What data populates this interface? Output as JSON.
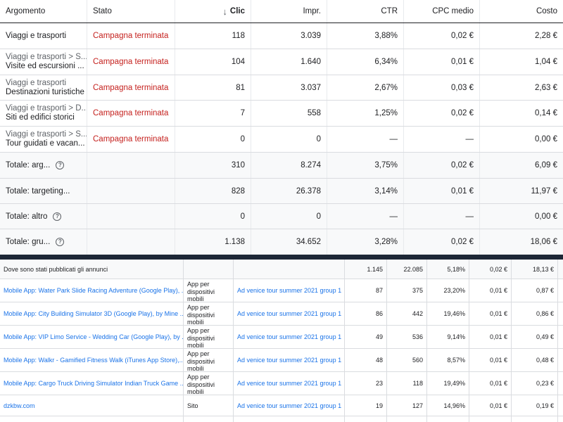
{
  "top_table": {
    "headers": {
      "argomento": "Argomento",
      "stato": "Stato",
      "clic": "Clic",
      "impr": "Impr.",
      "ctr": "CTR",
      "cpc": "CPC medio",
      "costo": "Costo"
    },
    "sort_icon": "arrow-down-icon",
    "rows": [
      {
        "line1": "Viaggi e trasporti",
        "line2": "",
        "stato": "Campagna terminata",
        "clic": "118",
        "impr": "3.039",
        "ctr": "3,88%",
        "cpc": "0,02 €",
        "costo": "2,28 €"
      },
      {
        "line1": "Viaggi e trasporti > S...",
        "line2": "Visite ed escursioni ...",
        "stato": "Campagna terminata",
        "clic": "104",
        "impr": "1.640",
        "ctr": "6,34%",
        "cpc": "0,01 €",
        "costo": "1,04 €"
      },
      {
        "line1": "Viaggi e trasporti",
        "line2": "Destinazioni turistiche",
        "stato": "Campagna terminata",
        "clic": "81",
        "impr": "3.037",
        "ctr": "2,67%",
        "cpc": "0,03 €",
        "costo": "2,63 €"
      },
      {
        "line1": "Viaggi e trasporti > D...",
        "line2": "Siti ed edifici storici",
        "stato": "Campagna terminata",
        "clic": "7",
        "impr": "558",
        "ctr": "1,25%",
        "cpc": "0,02 €",
        "costo": "0,14 €"
      },
      {
        "line1": "Viaggi e trasporti > S...",
        "line2": "Tour guidati e vacan...",
        "stato": "Campagna terminata",
        "clic": "0",
        "impr": "0",
        "ctr": "—",
        "cpc": "—",
        "costo": "0,00 €"
      }
    ],
    "totals": [
      {
        "label": "Totale: arg...",
        "help": true,
        "clic": "310",
        "impr": "8.274",
        "ctr": "3,75%",
        "cpc": "0,02 €",
        "costo": "6,09 €"
      },
      {
        "label": "Totale: targeting...",
        "help": false,
        "clic": "828",
        "impr": "26.378",
        "ctr": "3,14%",
        "cpc": "0,01 €",
        "costo": "11,97 €"
      },
      {
        "label": "Totale: altro",
        "help": true,
        "clic": "0",
        "impr": "0",
        "ctr": "—",
        "cpc": "—",
        "costo": "0,00 €"
      },
      {
        "label": "Totale: gru...",
        "help": true,
        "clic": "1.138",
        "impr": "34.652",
        "ctr": "3,28%",
        "cpc": "0,02 €",
        "costo": "18,06 €"
      }
    ],
    "help_glyph": "?"
  },
  "bottom_table": {
    "summary": {
      "label": "Dove sono stati pubblicati gli annunci",
      "clic": "1.145",
      "impr": "22.085",
      "ctr": "5,18%",
      "cpc": "0,02 €",
      "costo": "18,13 €"
    },
    "rows": [
      {
        "placement": "Mobile App: Water Park Slide Racing Adventure (Google Play), ...",
        "tipo": "App per dispositivi mobili",
        "gruppo": "Ad venice tour summer 2021 group 1",
        "clic": "87",
        "impr": "375",
        "ctr": "23,20%",
        "cpc": "0,01 €",
        "costo": "0,87 €"
      },
      {
        "placement": "Mobile App: City Building Simulator 3D (Google Play), by Mine ...",
        "tipo": "App per dispositivi mobili",
        "gruppo": "Ad venice tour summer 2021 group 1",
        "clic": "86",
        "impr": "442",
        "ctr": "19,46%",
        "cpc": "0,01 €",
        "costo": "0,86 €"
      },
      {
        "placement": "Mobile App: VIP Limo Service - Wedding Car (Google Play), by ...",
        "tipo": "App per dispositivi mobili",
        "gruppo": "Ad venice tour summer 2021 group 1",
        "clic": "49",
        "impr": "536",
        "ctr": "9,14%",
        "cpc": "0,01 €",
        "costo": "0,49 €"
      },
      {
        "placement": "Mobile App: Walkr - Gamified Fitness Walk (iTunes App Store),...",
        "tipo": "App per dispositivi mobili",
        "gruppo": "Ad venice tour summer 2021 group 1",
        "clic": "48",
        "impr": "560",
        "ctr": "8,57%",
        "cpc": "0,01 €",
        "costo": "0,48 €"
      },
      {
        "placement": "Mobile App: Cargo Truck Driving Simulator Indian Truck Game ...",
        "tipo": "App per dispositivi mobili",
        "gruppo": "Ad venice tour summer 2021 group 1",
        "clic": "23",
        "impr": "118",
        "ctr": "19,49%",
        "cpc": "0,01 €",
        "costo": "0,23 €"
      },
      {
        "placement": "dzkbw.com",
        "tipo": "Sito",
        "gruppo": "Ad venice tour summer 2021 group 1",
        "clic": "19",
        "impr": "127",
        "ctr": "14,96%",
        "cpc": "0,01 €",
        "costo": "0,19 €"
      }
    ]
  }
}
